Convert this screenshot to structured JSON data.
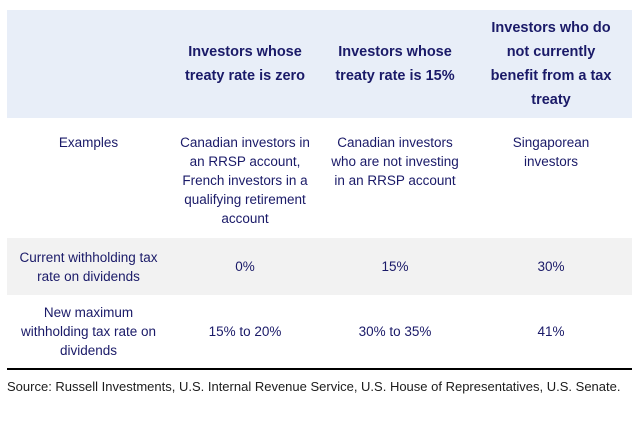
{
  "table": {
    "header": {
      "col0": "",
      "col1": "Investors whose treaty rate is zero",
      "col2": "Investors whose treaty rate is 15%",
      "col3": "Investors who do not currently benefit from a tax treaty"
    },
    "rows": {
      "examples": {
        "label": "Examples",
        "col1": "Canadian investors in an RRSP account, French investors in a qualifying retirement account",
        "col2": "Canadian investors who are not investing in an RRSP account",
        "col3": "Singaporean investors"
      },
      "current": {
        "label": "Current withholding tax rate on dividends",
        "col1": "0%",
        "col2": "15%",
        "col3": "30%"
      },
      "newmax": {
        "label": "New maximum withholding tax rate on dividends",
        "col1": "15% to 20%",
        "col2": "30% to 35%",
        "col3": "41%"
      }
    }
  },
  "source": "Source: Russell Investments, U.S. Internal Revenue Service, U.S. House of Representatives, U.S. Senate.",
  "colors": {
    "header_bg": "#e8eef8",
    "shaded_row_bg": "#f2f2f2",
    "navy": "#1a1a68",
    "source_color": "#1c1c1c",
    "rule_color": "#000000"
  },
  "chart_data": {
    "type": "table",
    "columns": [
      "",
      "Investors whose treaty rate is zero",
      "Investors whose treaty rate is 15%",
      "Investors who do not currently benefit from a tax treaty"
    ],
    "rows": [
      [
        "Examples",
        "Canadian investors in an RRSP account, French investors in a qualifying retirement account",
        "Canadian investors who are not investing in an RRSP account",
        "Singaporean investors"
      ],
      [
        "Current withholding tax rate on dividends",
        "0%",
        "15%",
        "30%"
      ],
      [
        "New maximum withholding tax rate on dividends",
        "15% to 20%",
        "30% to 35%",
        "41%"
      ]
    ],
    "title": "",
    "notes": "Source: Russell Investments, U.S. Internal Revenue Service, U.S. House of Representatives, U.S. Senate.",
    "layout_hints": {
      "header_background": "#e8eef8",
      "shaded_row_index": 1,
      "shaded_row_background": "#f2f2f2",
      "text_color": "#1a1a68",
      "bottom_rule": true
    }
  }
}
